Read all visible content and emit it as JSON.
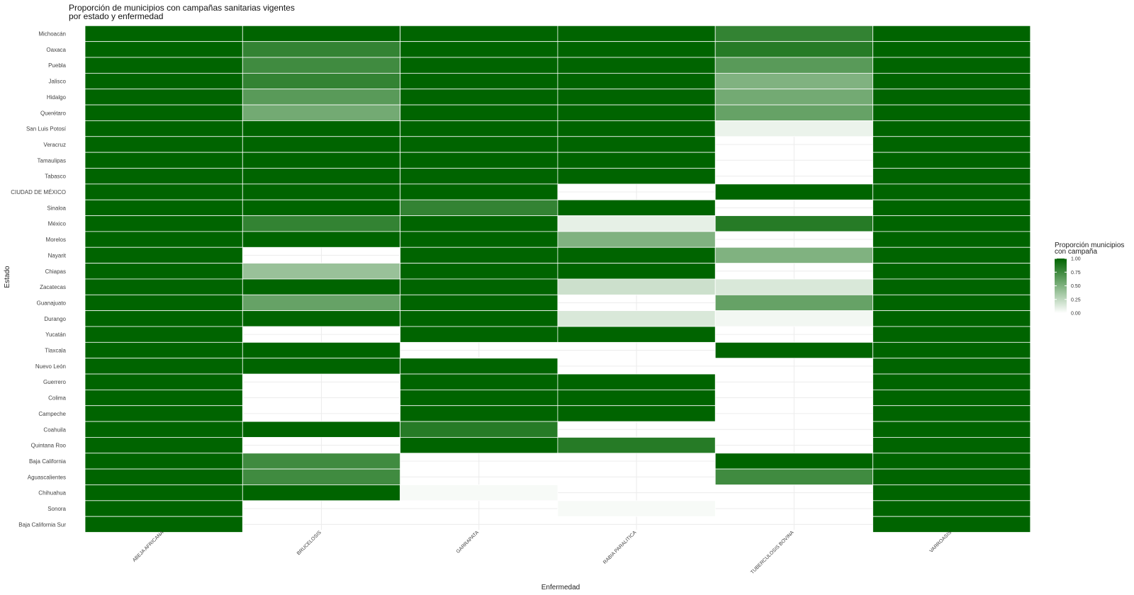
{
  "chart_data": {
    "type": "heatmap",
    "title": "Proporción de municipios con campañas sanitarias vigentes",
    "subtitle": "por estado y enfermedad",
    "xlabel": "Enfermedad",
    "ylabel": "Estado",
    "x_categories": [
      "ABEJA AFRICANA",
      "BRUCELOSIS",
      "GARRAPATA",
      "RABIA PARALITICA",
      "TUBERCULOSIS BOVINA",
      "VARROASIS"
    ],
    "y_categories": [
      "Michoacán",
      "Oaxaca",
      "Puebla",
      "Jalisco",
      "Hidalgo",
      "Querétaro",
      "San Luis Potosí",
      "Veracruz",
      "Tamaulipas",
      "Tabasco",
      "CIUDAD DE MÉXICO",
      "Sinaloa",
      "México",
      "Morelos",
      "Nayarit",
      "Chiapas",
      "Zacatecas",
      "Guanajuato",
      "Durango",
      "Yucatán",
      "Tlaxcala",
      "Nuevo León",
      "Guerrero",
      "Colima",
      "Campeche",
      "Coahuila",
      "Quintana Roo",
      "Baja California",
      "Aguascalientes",
      "Chihuahua",
      "Sonora",
      "Baja California Sur"
    ],
    "values": [
      [
        1,
        1,
        1,
        1,
        0.8,
        1
      ],
      [
        1,
        0.8,
        1,
        1,
        0.85,
        1
      ],
      [
        1,
        0.75,
        1,
        1,
        0.65,
        1
      ],
      [
        1,
        0.8,
        1,
        1,
        0.5,
        1
      ],
      [
        1,
        0.65,
        1,
        1,
        0.55,
        1
      ],
      [
        1,
        0.55,
        1,
        1,
        0.6,
        1
      ],
      [
        1,
        1,
        1,
        1,
        0.08,
        1
      ],
      [
        1,
        1,
        1,
        1,
        null,
        1
      ],
      [
        1,
        1,
        1,
        1,
        null,
        1
      ],
      [
        1,
        1,
        1,
        1,
        null,
        1
      ],
      [
        1,
        1,
        1,
        null,
        1,
        1
      ],
      [
        1,
        1,
        0.8,
        1,
        null,
        1
      ],
      [
        1,
        0.8,
        1,
        0.1,
        0.85,
        1
      ],
      [
        1,
        1,
        1,
        0.5,
        null,
        1
      ],
      [
        1,
        null,
        1,
        1,
        0.5,
        1
      ],
      [
        1,
        0.4,
        1,
        1,
        null,
        1
      ],
      [
        1,
        1,
        1,
        0.2,
        0.15,
        1
      ],
      [
        1,
        0.6,
        1,
        null,
        0.6,
        1
      ],
      [
        1,
        1,
        1,
        0.15,
        0.05,
        1
      ],
      [
        1,
        null,
        1,
        1,
        null,
        1
      ],
      [
        1,
        1,
        null,
        null,
        1,
        1
      ],
      [
        1,
        1,
        1,
        null,
        null,
        1
      ],
      [
        1,
        null,
        1,
        1,
        null,
        1
      ],
      [
        1,
        null,
        1,
        1,
        null,
        1
      ],
      [
        1,
        null,
        1,
        1,
        null,
        1
      ],
      [
        1,
        1,
        0.85,
        null,
        null,
        1
      ],
      [
        1,
        null,
        1,
        0.85,
        null,
        1
      ],
      [
        1,
        0.75,
        null,
        null,
        1,
        1
      ],
      [
        1,
        0.75,
        null,
        null,
        0.75,
        1
      ],
      [
        1,
        1,
        0.03,
        null,
        null,
        1
      ],
      [
        1,
        null,
        null,
        0.03,
        null,
        1
      ],
      [
        1,
        null,
        null,
        null,
        null,
        1
      ]
    ],
    "color_scale": {
      "low": "#ffffff",
      "high": "#006400",
      "domain": [
        0,
        1
      ]
    },
    "legend": {
      "title_lines": [
        "Proporción municipios",
        "con campaña"
      ],
      "ticks": [
        "1.00",
        "0.75",
        "0.50",
        "0.25",
        "0.00"
      ],
      "position": "right"
    },
    "grid": true
  }
}
